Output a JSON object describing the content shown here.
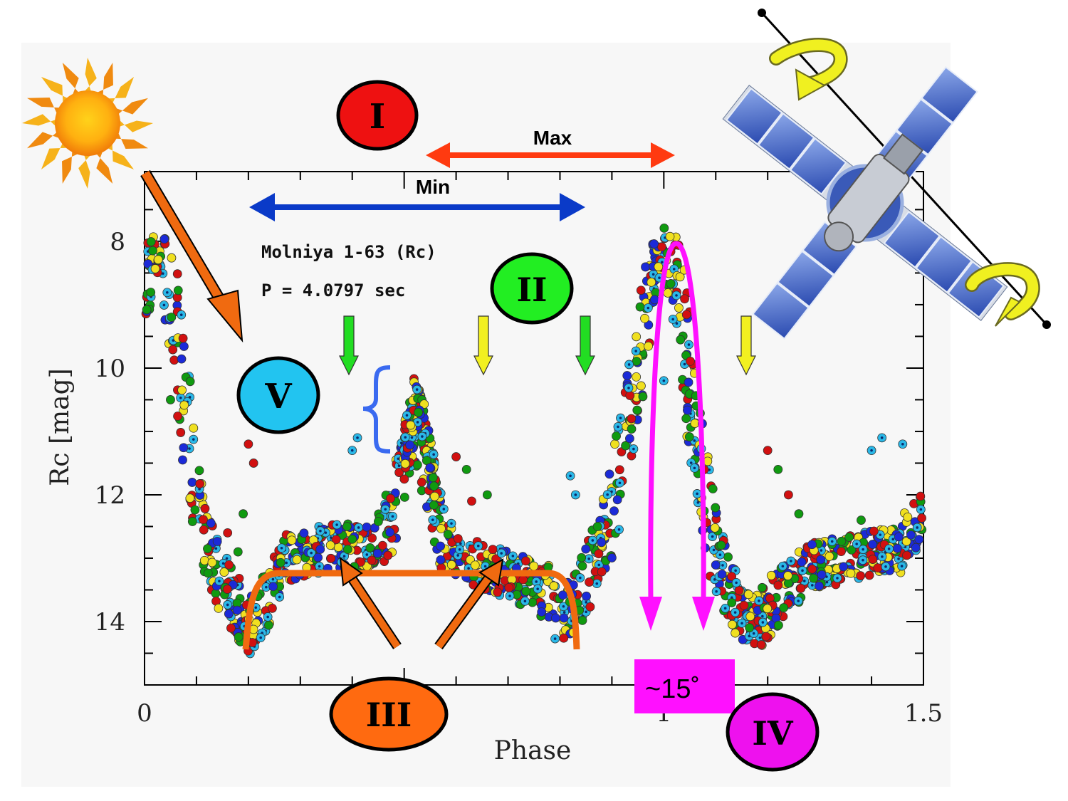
{
  "chart_data": {
    "type": "scatter",
    "title": "Molniya 1-63 (Rc)",
    "period_label": "P = 4.0797 sec",
    "xlabel": "Phase",
    "ylabel": "Rc [mag]",
    "xlim": [
      0,
      1.5
    ],
    "ylim": [
      15,
      6.9
    ],
    "x_tick_labels": [
      {
        "x": 0,
        "label": "0"
      },
      {
        "x": 1,
        "label": "1"
      },
      {
        "x": 1.5,
        "label": "1.5"
      }
    ],
    "y_tick_labels": [
      {
        "y": 8,
        "label": "8"
      },
      {
        "y": 10,
        "label": "10"
      },
      {
        "y": 12,
        "label": "12"
      },
      {
        "y": 14,
        "label": "14"
      }
    ],
    "series_colors": [
      "#d11010",
      "#109a10",
      "#f0e020",
      "#1b2ad8",
      "#2ab8e8"
    ],
    "curve_profile": [
      [
        0.0,
        9.0
      ],
      [
        0.02,
        8.3
      ],
      [
        0.04,
        8.3
      ],
      [
        0.06,
        9.4
      ],
      [
        0.08,
        10.8
      ],
      [
        0.1,
        12.0
      ],
      [
        0.12,
        12.8
      ],
      [
        0.15,
        13.4
      ],
      [
        0.18,
        13.8
      ],
      [
        0.2,
        14.1
      ],
      [
        0.22,
        13.9
      ],
      [
        0.25,
        13.3
      ],
      [
        0.28,
        13.0
      ],
      [
        0.32,
        12.9
      ],
      [
        0.36,
        12.8
      ],
      [
        0.42,
        12.8
      ],
      [
        0.46,
        12.6
      ],
      [
        0.48,
        12.3
      ],
      [
        0.5,
        11.6
      ],
      [
        0.52,
        11.0
      ],
      [
        0.54,
        11.4
      ],
      [
        0.56,
        12.2
      ],
      [
        0.58,
        12.8
      ],
      [
        0.62,
        13.0
      ],
      [
        0.68,
        13.2
      ],
      [
        0.74,
        13.4
      ],
      [
        0.78,
        13.6
      ],
      [
        0.8,
        13.9
      ],
      [
        0.83,
        13.7
      ],
      [
        0.86,
        13.2
      ],
      [
        0.9,
        12.3
      ],
      [
        0.93,
        11.0
      ],
      [
        0.96,
        9.5
      ],
      [
        0.98,
        8.5
      ],
      [
        1.0,
        8.2
      ],
      [
        1.02,
        8.5
      ],
      [
        1.04,
        9.6
      ],
      [
        1.06,
        11.0
      ],
      [
        1.08,
        12.0
      ],
      [
        1.1,
        12.9
      ],
      [
        1.12,
        13.4
      ],
      [
        1.15,
        13.9
      ],
      [
        1.18,
        14.0
      ],
      [
        1.2,
        13.8
      ],
      [
        1.24,
        13.4
      ],
      [
        1.3,
        13.1
      ],
      [
        1.36,
        13.0
      ],
      [
        1.42,
        12.9
      ],
      [
        1.46,
        12.8
      ],
      [
        1.5,
        12.3
      ]
    ],
    "secondary_peak_top": [
      [
        0.5,
        10.9
      ],
      [
        0.52,
        10.1
      ],
      [
        0.54,
        10.6
      ],
      [
        0.56,
        11.5
      ]
    ],
    "scattered_points": [
      [
        0.4,
        11.3,
        4
      ],
      [
        0.41,
        11.1,
        4
      ],
      [
        0.39,
        12.5,
        1
      ],
      [
        0.4,
        12.7,
        1
      ],
      [
        0.6,
        11.4,
        0
      ],
      [
        0.62,
        11.6,
        1
      ],
      [
        0.63,
        12.1,
        0
      ],
      [
        0.66,
        12.0,
        1
      ],
      [
        0.82,
        11.7,
        4
      ],
      [
        0.83,
        12.0,
        4
      ],
      [
        0.2,
        11.2,
        0
      ],
      [
        0.21,
        11.5,
        0
      ],
      [
        0.19,
        12.3,
        1
      ],
      [
        1.2,
        11.3,
        0
      ],
      [
        1.22,
        11.6,
        1
      ],
      [
        1.24,
        12.0,
        0
      ],
      [
        1.26,
        12.3,
        1
      ],
      [
        1.4,
        11.3,
        4
      ],
      [
        1.42,
        11.1,
        4
      ],
      [
        1.38,
        12.4,
        1
      ],
      [
        0.16,
        12.6,
        0
      ],
      [
        0.18,
        12.9,
        1
      ],
      [
        1.0,
        10.2,
        4
      ],
      [
        0.05,
        10.5,
        1
      ],
      [
        1.46,
        11.2,
        4
      ]
    ]
  },
  "annotations": {
    "marker_I": "I",
    "marker_II": "II",
    "marker_III": "III",
    "marker_IV": "IV",
    "marker_V": "V",
    "max_label": "Max",
    "min_label": "Min",
    "angle_label": "~15˚"
  },
  "colors": {
    "marker_I": "#ee1111",
    "marker_II": "#22ee22",
    "marker_III": "#ff6a10",
    "marker_IV": "#ee11ee",
    "marker_V": "#22c4f0",
    "max_arrow": "#ff3a10",
    "min_arrow": "#0a3ac8",
    "sun_arrow": "#f06a10",
    "bracket_orange": "#f06a10",
    "brace_blue": "#3a6af0",
    "magenta": "#ff10ff",
    "green_arrow": "#22dd22",
    "yellow_arrow": "#f2f020"
  },
  "icons": {
    "sun": "sun-icon",
    "satellite": "satellite-icon",
    "rotation": "rotation-arrow-icon"
  }
}
